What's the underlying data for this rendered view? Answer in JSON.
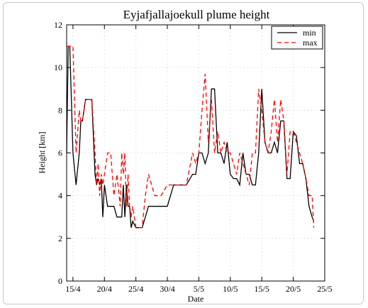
{
  "chart_data": {
    "type": "line",
    "title": "Eyjafjallajoekull plume height",
    "xlabel": "Date",
    "ylabel": "Height [km]",
    "x_start": "2010-04-14",
    "x_end": "2010-05-25",
    "xlim": [
      "2010-04-14",
      "2010-05-25"
    ],
    "ylim": [
      0,
      12
    ],
    "yticks": [
      0,
      2,
      4,
      6,
      8,
      10,
      12
    ],
    "xticks": [
      {
        "date": "2010-04-15",
        "label": "15/4"
      },
      {
        "date": "2010-04-20",
        "label": "20/4"
      },
      {
        "date": "2010-04-25",
        "label": "25/4"
      },
      {
        "date": "2010-04-30",
        "label": "30/4"
      },
      {
        "date": "2010-05-05",
        "label": "5/5"
      },
      {
        "date": "2010-05-10",
        "label": "10/5"
      },
      {
        "date": "2010-05-15",
        "label": "15/5"
      },
      {
        "date": "2010-05-20",
        "label": "20/5"
      },
      {
        "date": "2010-05-25",
        "label": "25/5"
      }
    ],
    "legend_position": "top-right",
    "grid": true,
    "series": [
      {
        "name": "min",
        "color": "#000000",
        "style": "solid",
        "x": [
          "2010-04-14",
          "2010-04-14T06:00",
          "2010-04-14T12:00",
          "2010-04-15",
          "2010-04-15T12:00",
          "2010-04-16",
          "2010-04-16T06:00",
          "2010-04-16T12:00",
          "2010-04-17",
          "2010-04-17T12:00",
          "2010-04-18",
          "2010-04-18T12:00",
          "2010-04-18T18:00",
          "2010-04-19",
          "2010-04-19T06:00",
          "2010-04-19T12:00",
          "2010-04-19T18:00",
          "2010-04-20",
          "2010-04-20T12:00",
          "2010-04-21",
          "2010-04-21T12:00",
          "2010-04-22",
          "2010-04-22T12:00",
          "2010-04-22T18:00",
          "2010-04-23",
          "2010-04-23T06:00",
          "2010-04-23T12:00",
          "2010-04-23T18:00",
          "2010-04-24",
          "2010-04-24T06:00",
          "2010-04-24T12:00",
          "2010-04-25",
          "2010-04-26",
          "2010-04-26T12:00",
          "2010-04-27",
          "2010-04-28",
          "2010-04-29",
          "2010-04-30",
          "2010-05-01",
          "2010-05-02",
          "2010-05-03",
          "2010-05-04",
          "2010-05-04T12:00",
          "2010-05-05",
          "2010-05-05T12:00",
          "2010-05-06",
          "2010-05-06T12:00",
          "2010-05-07",
          "2010-05-07T12:00",
          "2010-05-08",
          "2010-05-08T12:00",
          "2010-05-09",
          "2010-05-09T12:00",
          "2010-05-10",
          "2010-05-10T12:00",
          "2010-05-11",
          "2010-05-11T12:00",
          "2010-05-12",
          "2010-05-12T12:00",
          "2010-05-13",
          "2010-05-13T12:00",
          "2010-05-14",
          "2010-05-14T12:00",
          "2010-05-15",
          "2010-05-15T12:00",
          "2010-05-16",
          "2010-05-16T12:00",
          "2010-05-17",
          "2010-05-17T12:00",
          "2010-05-18",
          "2010-05-18T12:00",
          "2010-05-19",
          "2010-05-19T12:00",
          "2010-05-20",
          "2010-05-20T12:00",
          "2010-05-21",
          "2010-05-21T12:00",
          "2010-05-22",
          "2010-05-22T12:00",
          "2010-05-23",
          "2010-05-23T06:00"
        ],
        "y": [
          6,
          11,
          11,
          6,
          4.5,
          6,
          7.5,
          7.5,
          8.5,
          8.5,
          8.5,
          5,
          4.5,
          4.8,
          4.5,
          4.8,
          3,
          4.5,
          3.5,
          3.5,
          3.5,
          3,
          3,
          3,
          4.5,
          3,
          4.5,
          3.5,
          3.5,
          2.5,
          2.8,
          2.5,
          2.5,
          3,
          3.5,
          3.5,
          3.5,
          3.5,
          4.5,
          4.5,
          4.5,
          5,
          5,
          6,
          6,
          5.5,
          6,
          9,
          9,
          6,
          6,
          5.5,
          6.5,
          5,
          4.8,
          4.8,
          4.5,
          6,
          5,
          5,
          4.5,
          4.5,
          6,
          9,
          6.5,
          6,
          6,
          6.5,
          6,
          7.5,
          7.5,
          4.8,
          4.8,
          7,
          6.8,
          5.5,
          5.5,
          4.8,
          3.5,
          3,
          2.8
        ]
      },
      {
        "name": "max",
        "color": "#ff0000",
        "style": "dashed",
        "x": [
          "2010-04-14",
          "2010-04-14T06:00",
          "2010-04-14T12:00",
          "2010-04-15",
          "2010-04-15T12:00",
          "2010-04-16",
          "2010-04-16T06:00",
          "2010-04-16T12:00",
          "2010-04-17",
          "2010-04-17T12:00",
          "2010-04-18",
          "2010-04-18T12:00",
          "2010-04-18T18:00",
          "2010-04-19",
          "2010-04-19T06:00",
          "2010-04-19T12:00",
          "2010-04-19T18:00",
          "2010-04-20",
          "2010-04-20T12:00",
          "2010-04-21",
          "2010-04-21T12:00",
          "2010-04-22",
          "2010-04-22T12:00",
          "2010-04-22T18:00",
          "2010-04-23",
          "2010-04-23T06:00",
          "2010-04-23T12:00",
          "2010-04-23T18:00",
          "2010-04-24",
          "2010-04-24T06:00",
          "2010-04-24T12:00",
          "2010-04-25",
          "2010-04-26",
          "2010-04-26T12:00",
          "2010-04-27",
          "2010-04-28",
          "2010-04-29",
          "2010-04-30",
          "2010-05-01",
          "2010-05-02",
          "2010-05-03",
          "2010-05-04",
          "2010-05-04T12:00",
          "2010-05-05",
          "2010-05-05T12:00",
          "2010-05-06",
          "2010-05-06T12:00",
          "2010-05-07",
          "2010-05-07T12:00",
          "2010-05-08",
          "2010-05-08T12:00",
          "2010-05-09",
          "2010-05-09T12:00",
          "2010-05-10",
          "2010-05-10T12:00",
          "2010-05-11",
          "2010-05-11T12:00",
          "2010-05-12",
          "2010-05-12T12:00",
          "2010-05-13",
          "2010-05-13T12:00",
          "2010-05-14",
          "2010-05-14T12:00",
          "2010-05-15",
          "2010-05-15T12:00",
          "2010-05-16",
          "2010-05-16T12:00",
          "2010-05-17",
          "2010-05-17T12:00",
          "2010-05-18",
          "2010-05-18T12:00",
          "2010-05-19",
          "2010-05-19T12:00",
          "2010-05-20",
          "2010-05-20T12:00",
          "2010-05-21",
          "2010-05-21T12:00",
          "2010-05-22",
          "2010-05-22T12:00",
          "2010-05-23",
          "2010-05-23T06:00"
        ],
        "y": [
          11,
          11,
          11,
          11,
          6,
          8,
          7.5,
          7.5,
          8.5,
          8.5,
          8.5,
          6,
          4.5,
          5.5,
          4,
          5,
          4.5,
          5,
          6,
          6,
          4,
          5,
          3.5,
          6,
          5,
          6,
          3.5,
          5,
          3.5,
          3,
          3.5,
          2.5,
          2.5,
          4,
          5,
          4,
          4,
          4.5,
          4.5,
          4.5,
          4.5,
          6,
          5.5,
          6,
          8,
          9.7,
          6.5,
          8.5,
          6,
          7,
          6,
          6.5,
          6,
          6,
          5.5,
          5,
          6,
          5.5,
          5,
          4.5,
          6,
          6,
          9,
          8,
          6.5,
          6,
          7,
          8.5,
          6.5,
          8.5,
          7.5,
          5,
          7,
          7,
          6.5,
          6,
          5.5,
          4.8,
          4,
          4,
          2.5
        ]
      }
    ]
  }
}
